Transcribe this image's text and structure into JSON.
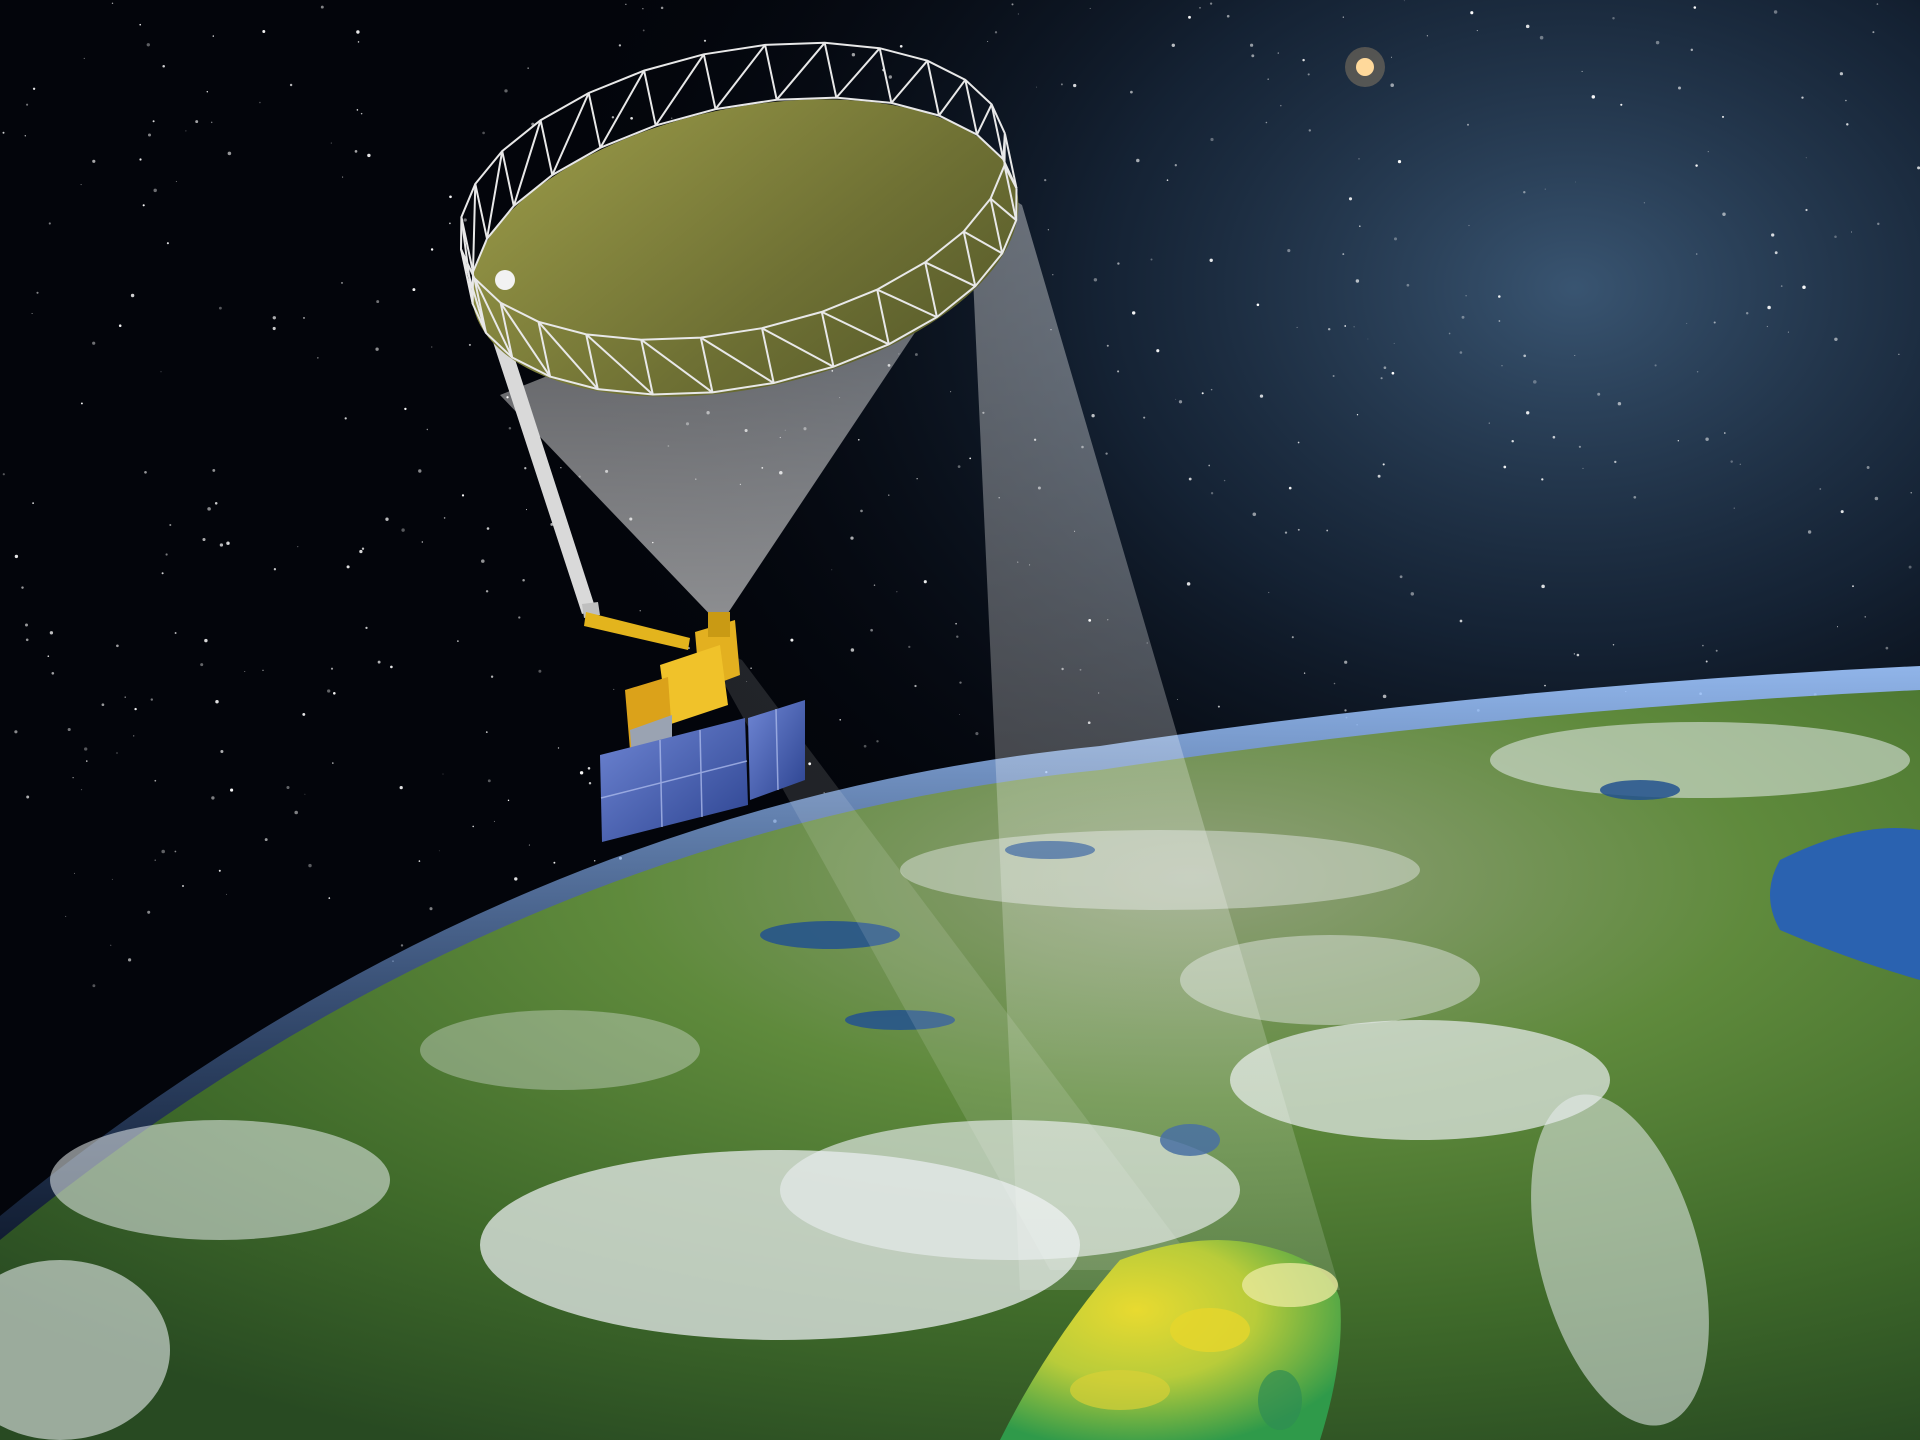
{
  "scene": {
    "colors": {
      "space": "#03050b",
      "nebula": "#3c5f82",
      "earth_land": "#4f7a32",
      "earth_cloud": "#e8ecee",
      "ocean": "#2a62b0",
      "antenna": "#8a8a3c",
      "bus_gold": "#e0b01c",
      "solar_panel": "#3a56a8",
      "beam": "#ffffff",
      "moisture_yellow": "#e4d534",
      "moisture_green": "#3fa24a"
    },
    "icons": {
      "antenna": "mesh-reflector-antenna",
      "spacecraft": "satellite-bus",
      "solar_array": "solar-panel",
      "footprint": "soil-moisture-swath"
    }
  }
}
